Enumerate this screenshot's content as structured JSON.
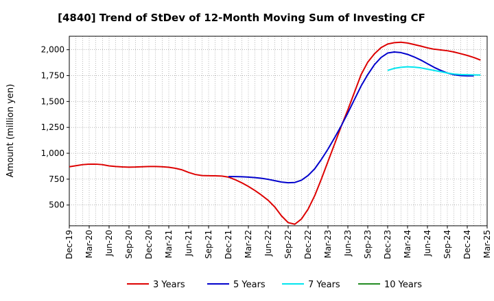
{
  "chart_data": {
    "type": "line",
    "title": "[4840]  Trend of StDev of 12-Month Moving Sum of Investing CF",
    "ylabel": "Amount (million yen)",
    "xlabel": "",
    "ylim": [
      300,
      2130
    ],
    "yticks": [
      500,
      750,
      1000,
      1250,
      1500,
      1750,
      2000
    ],
    "ytick_labels": [
      "500",
      "750",
      "1,000",
      "1,250",
      "1,500",
      "1,750",
      "2,000"
    ],
    "x_tick_labels": [
      "Dec-19",
      "Mar-20",
      "Jun-20",
      "Sep-20",
      "Dec-20",
      "Mar-21",
      "Jun-21",
      "Sep-21",
      "Dec-21",
      "Mar-22",
      "Jun-22",
      "Sep-22",
      "Dec-22",
      "Mar-23",
      "Jun-23",
      "Sep-23",
      "Dec-23",
      "Mar-24",
      "Jun-24",
      "Sep-24",
      "Dec-24",
      "Mar-25"
    ],
    "x_range_months": [
      0,
      63
    ],
    "grid": true,
    "legend_position": "bottom",
    "series": [
      {
        "name": "3 Years",
        "color": "#dd0000",
        "start_month": 0,
        "values": [
          870,
          880,
          890,
          895,
          895,
          890,
          878,
          872,
          868,
          866,
          867,
          870,
          872,
          872,
          870,
          865,
          855,
          840,
          815,
          795,
          785,
          783,
          782,
          780,
          770,
          745,
          715,
          680,
          640,
          595,
          545,
          480,
          395,
          330,
          315,
          365,
          460,
          590,
          750,
          920,
          1090,
          1260,
          1420,
          1590,
          1760,
          1880,
          1960,
          2020,
          2055,
          2068,
          2072,
          2065,
          2050,
          2035,
          2018,
          2005,
          1998,
          1990,
          1978,
          1962,
          1945,
          1925,
          1900
        ]
      },
      {
        "name": "5 Years",
        "color": "#0000cc",
        "start_month": 24,
        "values": [
          775,
          775,
          773,
          770,
          765,
          758,
          748,
          735,
          722,
          715,
          718,
          740,
          785,
          850,
          940,
          1040,
          1150,
          1265,
          1390,
          1520,
          1650,
          1760,
          1855,
          1925,
          1968,
          1978,
          1972,
          1955,
          1930,
          1900,
          1865,
          1830,
          1800,
          1775,
          1758,
          1750,
          1748,
          1748
        ]
      },
      {
        "name": "7 Years",
        "color": "#00e5ee",
        "start_month": 48,
        "values": [
          1800,
          1820,
          1830,
          1835,
          1832,
          1825,
          1812,
          1800,
          1788,
          1775,
          1765,
          1760,
          1758,
          1757,
          1756
        ]
      },
      {
        "name": "10 Years",
        "color": "#228b22",
        "start_month": 63,
        "values": []
      }
    ]
  }
}
